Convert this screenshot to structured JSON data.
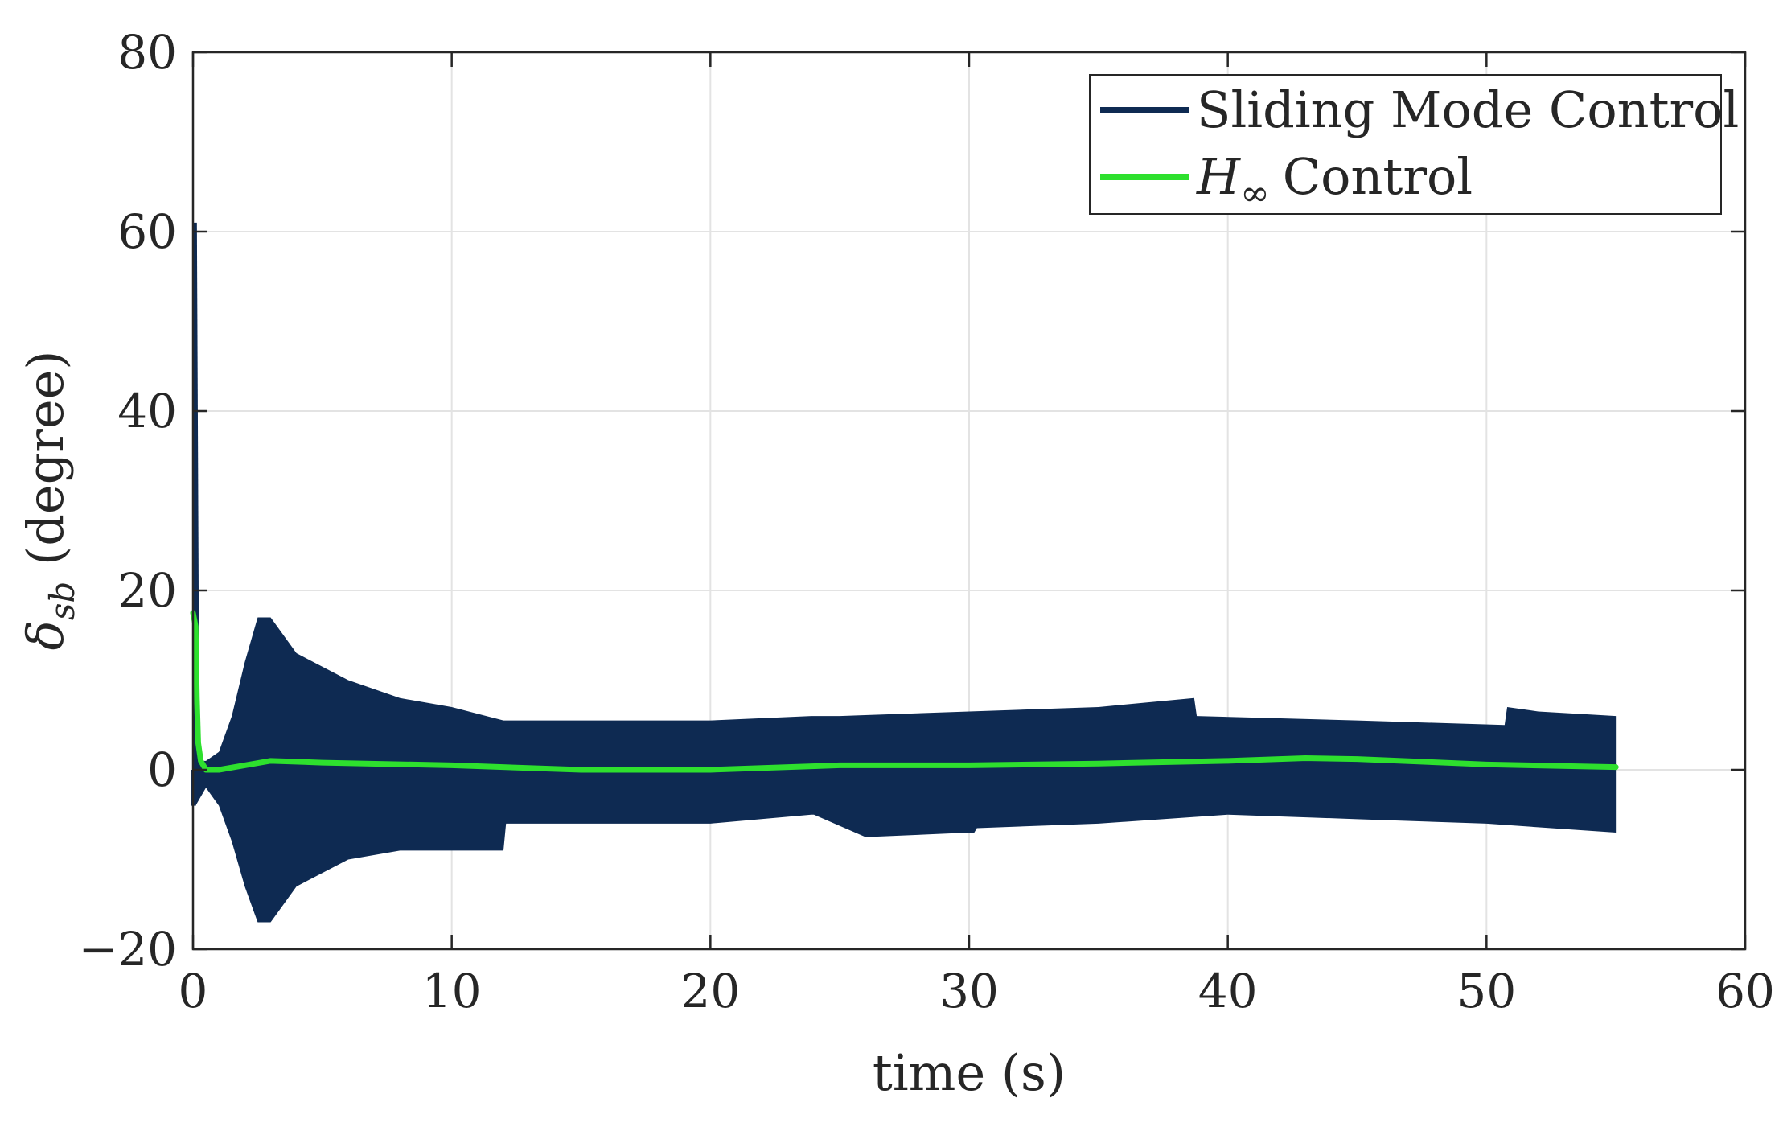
{
  "chart_data": {
    "type": "line",
    "title": "",
    "xlabel": "time (s)",
    "ylabel_symbol": "δ",
    "ylabel_subscript": "sb",
    "ylabel_unit": "(degree)",
    "xlim": [
      0,
      60
    ],
    "ylim": [
      -20,
      80
    ],
    "grid": true,
    "legend_position": "top-right",
    "x_ticks": [
      0,
      10,
      20,
      30,
      40,
      50,
      60
    ],
    "x_tick_labels": [
      "0",
      "10",
      "20",
      "30",
      "40",
      "50",
      "60"
    ],
    "y_ticks": [
      -20,
      0,
      20,
      40,
      60,
      80
    ],
    "y_tick_labels": [
      "−20",
      "0",
      "20",
      "40",
      "60",
      "80"
    ],
    "series": [
      {
        "name": "Sliding Mode Control",
        "color": "#0e2a52",
        "style": "high-frequency oscillation band",
        "peak": {
          "x": 0.05,
          "y": 61
        },
        "upper_envelope": [
          [
            0.1,
            1
          ],
          [
            0.5,
            1
          ],
          [
            1.0,
            2
          ],
          [
            1.5,
            6
          ],
          [
            2.0,
            12
          ],
          [
            2.5,
            17
          ],
          [
            3.0,
            17
          ],
          [
            4.0,
            13
          ],
          [
            6.0,
            10
          ],
          [
            8.0,
            8
          ],
          [
            10.0,
            7
          ],
          [
            12.0,
            5.5
          ],
          [
            15.0,
            5.5
          ],
          [
            20.0,
            5.5
          ],
          [
            23.9,
            6
          ],
          [
            24.0,
            6
          ],
          [
            25.0,
            6
          ],
          [
            30.0,
            6.5
          ],
          [
            35.0,
            7
          ],
          [
            38.7,
            8
          ],
          [
            38.8,
            6
          ],
          [
            45.0,
            5.5
          ],
          [
            50.7,
            5
          ],
          [
            50.8,
            7
          ],
          [
            52.0,
            6.5
          ],
          [
            55.0,
            6
          ]
        ],
        "lower_envelope": [
          [
            0.1,
            -4
          ],
          [
            0.5,
            -2
          ],
          [
            1.0,
            -4
          ],
          [
            1.5,
            -8
          ],
          [
            2.0,
            -13
          ],
          [
            2.5,
            -17
          ],
          [
            3.0,
            -17
          ],
          [
            4.0,
            -13
          ],
          [
            6.0,
            -10
          ],
          [
            8.0,
            -9
          ],
          [
            8.9,
            -9
          ],
          [
            9.0,
            -9
          ],
          [
            12.0,
            -9
          ],
          [
            12.1,
            -6
          ],
          [
            15.0,
            -6
          ],
          [
            20.0,
            -6
          ],
          [
            23.9,
            -5
          ],
          [
            24.0,
            -5
          ],
          [
            26.0,
            -7.5
          ],
          [
            30.0,
            -7
          ],
          [
            30.2,
            -7
          ],
          [
            30.3,
            -6.5
          ],
          [
            35.0,
            -6
          ],
          [
            40.0,
            -5
          ],
          [
            45.0,
            -5.5
          ],
          [
            50.0,
            -6
          ],
          [
            55.0,
            -7
          ]
        ]
      },
      {
        "name": "H∞ Control",
        "label_symbol": "H",
        "label_subscript": "∞",
        "label_text": "Control",
        "color": "#2ee02e",
        "points": [
          [
            0.0,
            17.5
          ],
          [
            0.1,
            16
          ],
          [
            0.15,
            8
          ],
          [
            0.2,
            3
          ],
          [
            0.3,
            1
          ],
          [
            0.5,
            0
          ],
          [
            1.0,
            0
          ],
          [
            2.0,
            0.5
          ],
          [
            3.0,
            1
          ],
          [
            5.0,
            0.8
          ],
          [
            10.0,
            0.5
          ],
          [
            15.0,
            0
          ],
          [
            20.0,
            0
          ],
          [
            25.0,
            0.5
          ],
          [
            30.0,
            0.5
          ],
          [
            35.0,
            0.7
          ],
          [
            40.0,
            1
          ],
          [
            43.0,
            1.3
          ],
          [
            45.0,
            1.2
          ],
          [
            50.0,
            0.6
          ],
          [
            55.0,
            0.3
          ]
        ]
      }
    ]
  }
}
